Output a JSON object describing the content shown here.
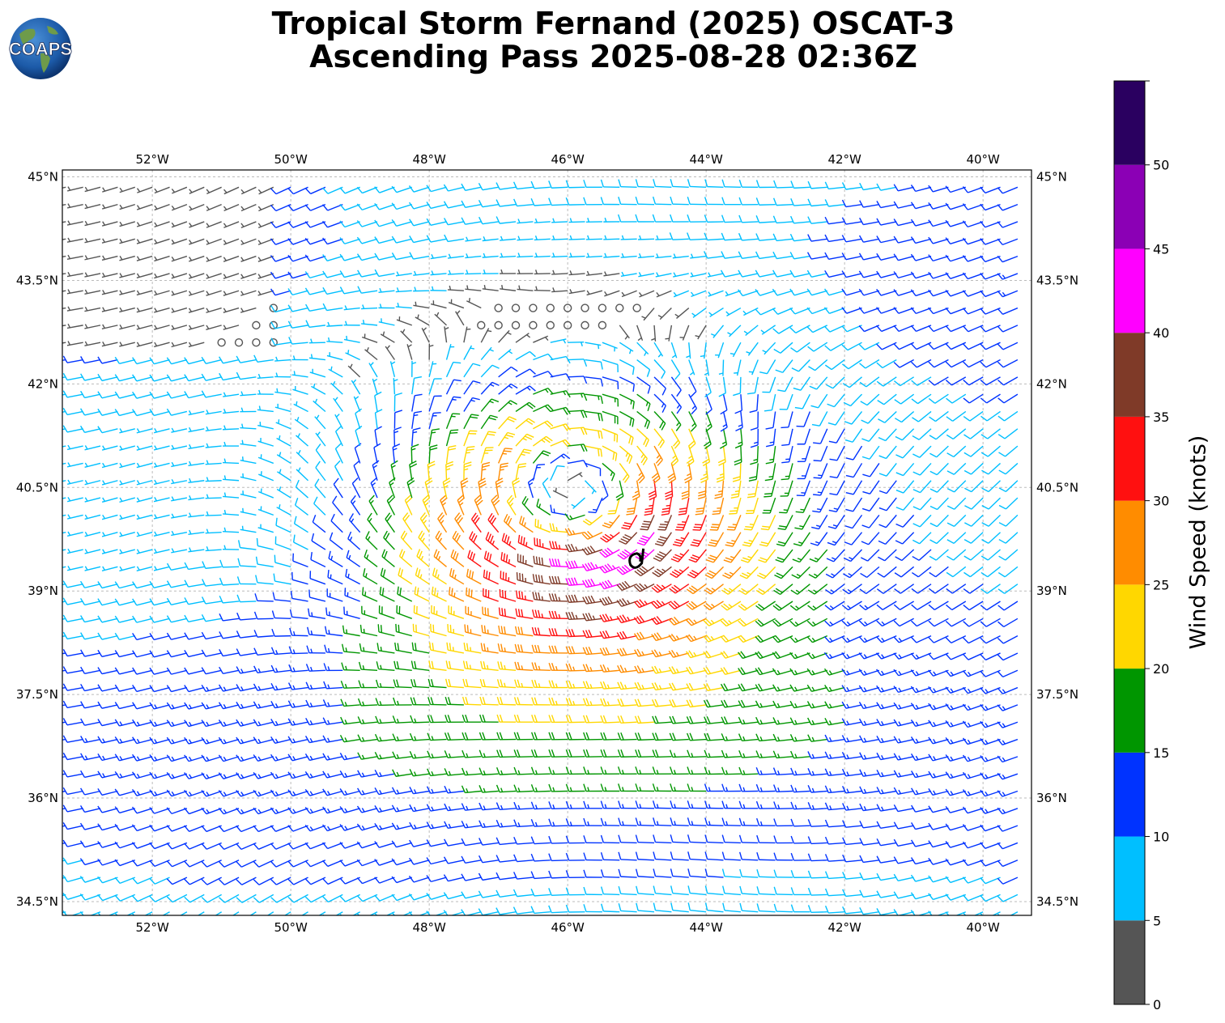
{
  "title": {
    "line1": "Tropical Storm Fernand (2025) OSCAT-3",
    "line2": "Ascending Pass 2025-08-28 02:36Z"
  },
  "logo": {
    "text": "COAPS",
    "icon": "globe-logo-icon"
  },
  "map": {
    "lon_range": [
      -53.3,
      -39.3
    ],
    "lat_range": [
      34.3,
      45.1
    ],
    "lon_ticks": [
      {
        "value": -52,
        "label": "52°W"
      },
      {
        "value": -50,
        "label": "50°W"
      },
      {
        "value": -48,
        "label": "48°W"
      },
      {
        "value": -46,
        "label": "46°W"
      },
      {
        "value": -44,
        "label": "44°W"
      },
      {
        "value": -42,
        "label": "42°W"
      },
      {
        "value": -40,
        "label": "40°W"
      }
    ],
    "lat_ticks": [
      {
        "value": 45,
        "label": "45°N"
      },
      {
        "value": 43.5,
        "label": "43.5°N"
      },
      {
        "value": 42,
        "label": "42°N"
      },
      {
        "value": 40.5,
        "label": "40.5°N"
      },
      {
        "value": 39,
        "label": "39°N"
      },
      {
        "value": 37.5,
        "label": "37.5°N"
      },
      {
        "value": 36,
        "label": "36°N"
      },
      {
        "value": 34.5,
        "label": "34.5°N"
      }
    ],
    "grid": true,
    "storm_center": {
      "lon": -45.9,
      "lat": 40.3
    },
    "storm_symbol": {
      "lon": -45.0,
      "lat": 39.45,
      "icon": "tropical-storm-icon"
    }
  },
  "colorbar": {
    "label": "Wind Speed (knots)",
    "ticks": [
      "0",
      "5",
      "10",
      "15",
      "20",
      "25",
      "30",
      "35",
      "40",
      "45",
      "50"
    ],
    "bins": [
      {
        "min": 0,
        "max": 5,
        "color": "#555555"
      },
      {
        "min": 5,
        "max": 10,
        "color": "#00bfff"
      },
      {
        "min": 10,
        "max": 15,
        "color": "#0033ff"
      },
      {
        "min": 15,
        "max": 20,
        "color": "#009600"
      },
      {
        "min": 20,
        "max": 25,
        "color": "#ffd700"
      },
      {
        "min": 25,
        "max": 30,
        "color": "#ff8c00"
      },
      {
        "min": 30,
        "max": 35,
        "color": "#ff1010"
      },
      {
        "min": 35,
        "max": 40,
        "color": "#7f3a28"
      },
      {
        "min": 40,
        "max": 45,
        "color": "#ff00ff"
      },
      {
        "min": 45,
        "max": 50,
        "color": "#8b00b5"
      },
      {
        "min": 50,
        "max": 55,
        "color": "#2a0060"
      }
    ]
  }
}
